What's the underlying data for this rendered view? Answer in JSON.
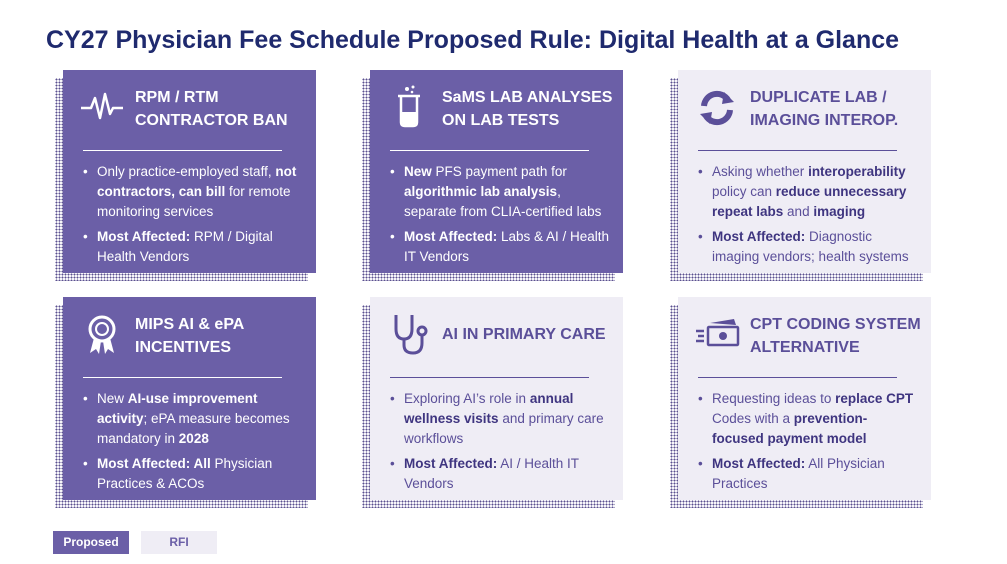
{
  "header": {
    "title": "CY27 Physician Fee Schedule Proposed Rule: Digital Health at a Glance"
  },
  "cards": [
    {
      "kind": "proposed",
      "title": [
        "RPM / RTM",
        "CONTRACTOR BAN"
      ],
      "bullets": [
        [
          {
            "text": "Only practice-employed staff, ",
            "bold": false
          },
          {
            "text": "not contractors, can bill",
            "bold": true
          },
          {
            "text": " for remote monitoring services",
            "bold": false
          }
        ],
        [
          {
            "text": "Most Affected:",
            "bold": true
          },
          {
            "text": " RPM / Digital Health Vendors",
            "bold": false
          }
        ]
      ]
    },
    {
      "kind": "proposed",
      "title": [
        "SaMS LAB ANALYSES",
        "ON LAB TESTS"
      ],
      "bullets": [
        [
          {
            "text": "New",
            "bold": true
          },
          {
            "text": " PFS payment path for ",
            "bold": false
          },
          {
            "text": "algorithmic lab analysis",
            "bold": true
          },
          {
            "text": ", separate from CLIA-certified labs",
            "bold": false
          }
        ],
        [
          {
            "text": "Most Affected:",
            "bold": true
          },
          {
            "text": " Labs & AI / Health IT Vendors",
            "bold": false
          }
        ]
      ]
    },
    {
      "kind": "rfi",
      "title": [
        "DUPLICATE LAB /",
        "IMAGING INTEROP."
      ],
      "bullets": [
        [
          {
            "text": "Asking whether ",
            "bold": false
          },
          {
            "text": "interoperability",
            "bold": true
          },
          {
            "text": " policy can ",
            "bold": false
          },
          {
            "text": "reduce unnecessary repeat labs",
            "bold": true
          },
          {
            "text": " and ",
            "bold": false
          },
          {
            "text": "imaging",
            "bold": true
          }
        ],
        [
          {
            "text": "Most Affected:",
            "bold": true
          },
          {
            "text": " Diagnostic imaging vendors; health systems",
            "bold": false
          }
        ]
      ]
    },
    {
      "kind": "proposed",
      "title": [
        "MIPS AI & ePA",
        "INCENTIVES"
      ],
      "bullets": [
        [
          {
            "text": "New ",
            "bold": false
          },
          {
            "text": "AI-use improvement activity",
            "bold": true
          },
          {
            "text": "; ePA measure becomes mandatory in ",
            "bold": false
          },
          {
            "text": "2028",
            "bold": true
          }
        ],
        [
          {
            "text": "Most Affected: All",
            "bold": true
          },
          {
            "text": " Physician Practices & ACOs",
            "bold": false
          }
        ]
      ]
    },
    {
      "kind": "rfi",
      "title": [
        "AI IN PRIMARY CARE"
      ],
      "bullets": [
        [
          {
            "text": "Exploring AI’s role in ",
            "bold": false
          },
          {
            "text": "annual wellness visits",
            "bold": true
          },
          {
            "text": " and primary care workflows",
            "bold": false
          }
        ],
        [
          {
            "text": "Most Affected:",
            "bold": true
          },
          {
            "text": " AI / Health IT Vendors",
            "bold": false
          }
        ]
      ]
    },
    {
      "kind": "rfi",
      "title": [
        "CPT CODING SYSTEM",
        "ALTERNATIVE"
      ],
      "bullets": [
        [
          {
            "text": "Requesting ideas to ",
            "bold": false
          },
          {
            "text": "replace CPT",
            "bold": true
          },
          {
            "text": " Codes with a ",
            "bold": false
          },
          {
            "text": "prevention-focused payment model",
            "bold": true
          }
        ],
        [
          {
            "text": "Most Affected:",
            "bold": true
          },
          {
            "text": " All Physician Practices",
            "bold": false
          }
        ]
      ]
    }
  ],
  "legend": [
    {
      "kind": "proposed",
      "label": "Proposed"
    },
    {
      "kind": "rfi",
      "label": "RFI"
    }
  ]
}
